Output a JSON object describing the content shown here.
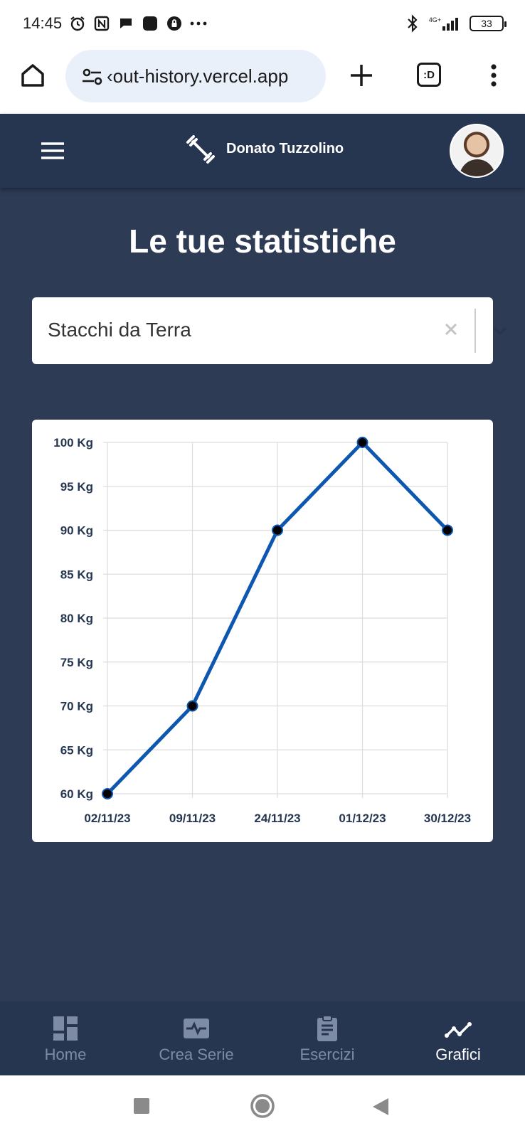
{
  "status_bar": {
    "time": "14:45",
    "network": "4G+",
    "battery": "33"
  },
  "browser": {
    "url": "‹out-history.vercel.app",
    "tab_label": ":D"
  },
  "header": {
    "user_name": "Donato Tuzzolino"
  },
  "main": {
    "title": "Le tue statistiche",
    "exercise_select": {
      "value": "Stacchi da Terra"
    }
  },
  "chart_data": {
    "type": "line",
    "categories": [
      "02/11/23",
      "09/11/23",
      "24/11/23",
      "01/12/23",
      "30/12/23"
    ],
    "series": [
      {
        "values": [
          60,
          70,
          90,
          100,
          90
        ]
      }
    ],
    "y_ticks": [
      "60 Kg",
      "65 Kg",
      "70 Kg",
      "75 Kg",
      "80 Kg",
      "85 Kg",
      "90 Kg",
      "95 Kg",
      "100 Kg"
    ],
    "ylim": [
      60,
      100
    ],
    "y_step": 5,
    "grid": true,
    "line_color": "#0d57b0",
    "point_color": "#000000"
  },
  "bottom_nav": {
    "items": [
      {
        "label": "Home",
        "icon": "dashboard-icon"
      },
      {
        "label": "Crea Serie",
        "icon": "activity-icon"
      },
      {
        "label": "Esercizi",
        "icon": "clipboard-icon"
      },
      {
        "label": "Grafici",
        "icon": "chart-line-icon",
        "active": true
      }
    ]
  },
  "colors": {
    "app_background": "#2d3b55",
    "header_background": "#263651",
    "nav_inactive": "#7d8ba5",
    "nav_active": "#ffffff"
  }
}
